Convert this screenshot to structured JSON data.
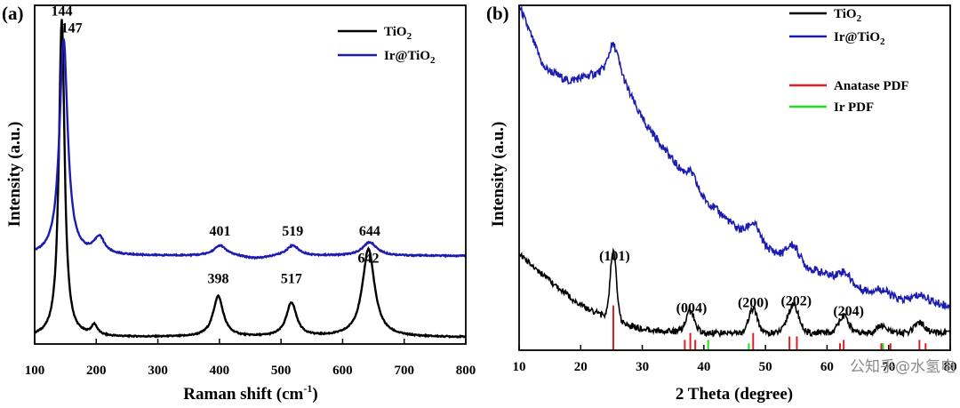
{
  "chart_data": [
    {
      "panel": "(a)",
      "type": "line",
      "xlabel": "Raman shift (cm",
      "xlabel_sup": "-1",
      "xlabel_end": ")",
      "ylabel": "Intensity (a.u.)",
      "xlim": [
        100,
        800
      ],
      "ylim": [
        0,
        100
      ],
      "xticks": [
        100,
        200,
        300,
        400,
        500,
        600,
        700,
        800
      ],
      "legend_position": "top-right",
      "series": [
        {
          "name": "TiO",
          "sub": "2",
          "color": "#000000",
          "offset": 2,
          "peaks": [
            [
              144,
              94,
              5.5
            ],
            [
              197,
              3,
              6
            ],
            [
              398,
              12,
              10
            ],
            [
              517,
              10,
              10
            ],
            [
              642,
              26,
              12
            ]
          ]
        },
        {
          "name": "Ir@TiO",
          "sub": "2",
          "color": "#1c1cb0",
          "offset": 26,
          "peaks": [
            [
              147,
              64,
              8
            ],
            [
              205,
              5,
              10
            ],
            [
              401,
              3,
              12
            ],
            [
              519,
              3,
              12
            ],
            [
              644,
              4,
              14
            ]
          ]
        }
      ],
      "annotations": [
        {
          "text": "144",
          "x": 144,
          "y": 97
        },
        {
          "text": "147",
          "x": 160,
          "y": 92
        },
        {
          "text": "401",
          "x": 401,
          "y": 32
        },
        {
          "text": "519",
          "x": 519,
          "y": 32
        },
        {
          "text": "644",
          "x": 644,
          "y": 32
        },
        {
          "text": "398",
          "x": 398,
          "y": 18
        },
        {
          "text": "517",
          "x": 517,
          "y": 18
        },
        {
          "text": "642",
          "x": 642,
          "y": 24
        }
      ]
    },
    {
      "panel": "(b)",
      "type": "line",
      "xlabel": "2 Theta (degree)",
      "ylabel": "Intensity (a.u.)",
      "xlim": [
        10,
        80
      ],
      "ylim": [
        0,
        100
      ],
      "xticks": [
        10,
        20,
        30,
        40,
        50,
        60,
        70,
        80
      ],
      "legend_position": "top-right",
      "series": [
        {
          "name": "TiO",
          "sub": "2",
          "color": "#000000"
        },
        {
          "name": "Ir@TiO",
          "sub": "2",
          "color": "#1c1cb0"
        },
        {
          "name": "Anatase PDF",
          "color": "#e02020"
        },
        {
          "name": "Ir PDF",
          "color": "#22dd22"
        }
      ],
      "ir_xrd": {
        "background": [
          [
            10,
            100
          ],
          [
            14,
            82
          ],
          [
            18,
            78
          ],
          [
            22,
            80
          ],
          [
            25,
            82
          ],
          [
            27,
            78
          ],
          [
            30,
            67
          ],
          [
            35,
            55
          ],
          [
            40,
            44
          ],
          [
            45,
            36
          ],
          [
            50,
            30
          ],
          [
            55,
            25
          ],
          [
            60,
            22
          ],
          [
            65,
            18
          ],
          [
            70,
            15
          ],
          [
            75,
            14
          ],
          [
            80,
            13
          ]
        ],
        "peaks": [
          [
            25.4,
            7,
            0.8
          ],
          [
            38,
            3,
            0.8
          ],
          [
            48.1,
            4.5,
            0.9
          ],
          [
            54.5,
            5,
            1.0
          ],
          [
            62.8,
            3,
            1.0
          ],
          [
            69,
            2,
            1.2
          ],
          [
            75.2,
            2,
            1.2
          ]
        ]
      },
      "tio2_xrd": {
        "background": [
          [
            10,
            28
          ],
          [
            15,
            20
          ],
          [
            20,
            13
          ],
          [
            25,
            9
          ],
          [
            30,
            6
          ],
          [
            40,
            5
          ],
          [
            50,
            5
          ],
          [
            60,
            5
          ],
          [
            70,
            5
          ],
          [
            80,
            5
          ]
        ],
        "peaks": [
          [
            25.3,
            20,
            0.5
          ],
          [
            37.8,
            6,
            0.7
          ],
          [
            48.0,
            7,
            0.7
          ],
          [
            54.5,
            8,
            0.9
          ],
          [
            62.7,
            5,
            0.8
          ],
          [
            68.8,
            2,
            0.8
          ],
          [
            75.0,
            3,
            0.8
          ]
        ]
      },
      "anatase_pdf": [
        [
          25.3,
          13
        ],
        [
          36.9,
          3
        ],
        [
          37.8,
          5
        ],
        [
          38.6,
          3
        ],
        [
          48.0,
          5
        ],
        [
          53.9,
          4
        ],
        [
          55.1,
          4
        ],
        [
          62.1,
          2
        ],
        [
          62.7,
          3
        ],
        [
          68.8,
          2
        ],
        [
          70.3,
          2
        ],
        [
          75.0,
          3
        ],
        [
          76.0,
          2
        ]
      ],
      "ir_pdf": [
        [
          40.7,
          3
        ],
        [
          47.3,
          2
        ],
        [
          69.1,
          2
        ]
      ],
      "annotations": [
        {
          "text": "(101)",
          "x": 25.5,
          "y": 26
        },
        {
          "text": "(004)",
          "x": 38,
          "y": 11
        },
        {
          "text": "(200)",
          "x": 48,
          "y": 12.5
        },
        {
          "text": "(202)",
          "x": 55,
          "y": 13
        },
        {
          "text": "(204)",
          "x": 63.5,
          "y": 10
        }
      ]
    }
  ],
  "watermark": "公知乎@水氢电"
}
